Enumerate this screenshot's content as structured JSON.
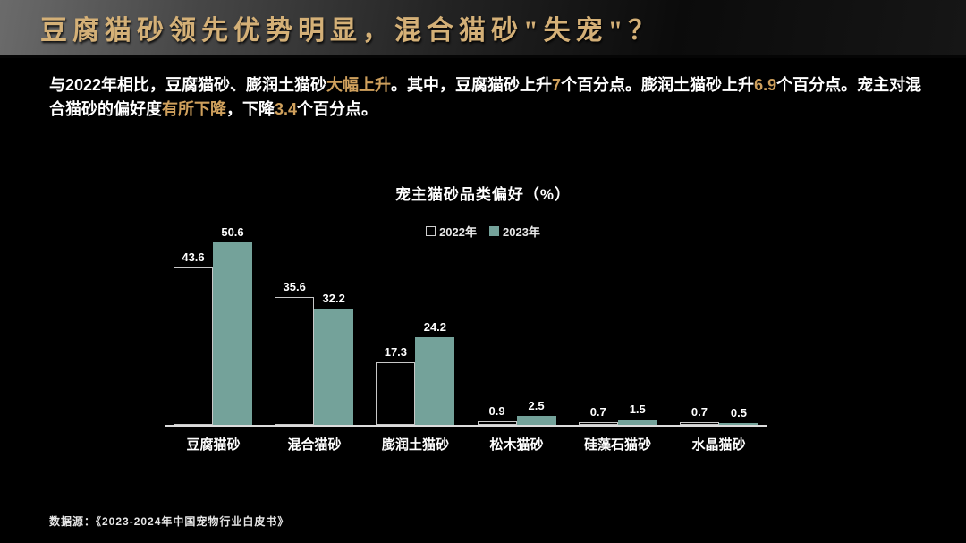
{
  "header": {
    "title": "豆腐猫砂领先优势明显，混合猫砂\"失宠\"？"
  },
  "intro": {
    "segments": [
      {
        "text": "与2022年相比，豆腐猫砂、膨润土猫砂",
        "highlight": false
      },
      {
        "text": "大幅上升",
        "highlight": true
      },
      {
        "text": "。其中，豆腐猫砂上升",
        "highlight": false
      },
      {
        "text": "7",
        "highlight": true
      },
      {
        "text": "个百分点。膨润土猫砂上升",
        "highlight": false
      },
      {
        "text": "6.9",
        "highlight": true
      },
      {
        "text": "个百分点。宠主对混合猫砂的偏好度",
        "highlight": false
      },
      {
        "text": "有所下降",
        "highlight": true
      },
      {
        "text": "，下降",
        "highlight": false
      },
      {
        "text": "3.4",
        "highlight": true
      },
      {
        "text": "个百分点。",
        "highlight": false
      }
    ]
  },
  "chart_data": {
    "type": "bar",
    "title": "宠主猫砂品类偏好（%）",
    "categories": [
      "豆腐猫砂",
      "混合猫砂",
      "膨润土猫砂",
      "松木猫砂",
      "硅藻石猫砂",
      "水晶猫砂"
    ],
    "series": [
      {
        "name": "2022年",
        "style": "outline",
        "values": [
          43.6,
          35.6,
          17.3,
          0.9,
          0.7,
          0.7
        ]
      },
      {
        "name": "2023年",
        "style": "fill",
        "values": [
          50.6,
          32.2,
          24.2,
          2.5,
          1.5,
          0.5
        ]
      }
    ],
    "ylim": [
      0,
      55
    ],
    "grid": false,
    "legend_position": "top-center",
    "value_labels": true,
    "xlabel": "",
    "ylabel": ""
  },
  "footer": {
    "source": "数据源：《2023-2024年中国宠物行业白皮书》"
  },
  "colors": {
    "background": "#000000",
    "title_gold": "#d4b077",
    "highlight_gold": "#cfa05c",
    "bar_fill_teal": "#74a29a",
    "bar_outline": "#c8c8c8",
    "axis_line": "#dcdcdc"
  }
}
